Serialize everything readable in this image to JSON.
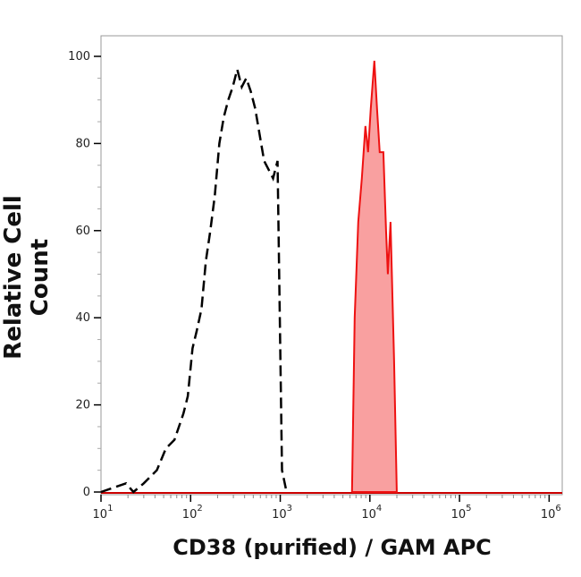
{
  "chart_data": {
    "type": "area",
    "xlabel": "CD38 (purified) / GAM APC",
    "ylabel": "Relative Cell Count",
    "xscale": "log",
    "xlim": [
      10,
      1400000
    ],
    "ylim": [
      0,
      100
    ],
    "yticks": [
      0,
      20,
      40,
      60,
      80,
      100
    ],
    "xticks": [
      {
        "base": "10",
        "exp": "1",
        "value": 10
      },
      {
        "base": "10",
        "exp": "2",
        "value": 100
      },
      {
        "base": "10",
        "exp": "3",
        "value": 1000
      },
      {
        "base": "10",
        "exp": "4",
        "value": 10000
      },
      {
        "base": "10",
        "exp": "5",
        "value": 100000
      },
      {
        "base": "10",
        "exp": "6",
        "value": 1000000
      }
    ],
    "grid": false,
    "series": [
      {
        "style": "dashed-black-line",
        "color": "#000000",
        "x": [
          10,
          19,
          23,
          30,
          42,
          53,
          66,
          83,
          93,
          105,
          117,
          132,
          148,
          166,
          186,
          209,
          234,
          263,
          295,
          331,
          372,
          417,
          468,
          525,
          589,
          661,
          741,
          832,
          933,
          1047,
          1175
        ],
        "y": [
          0,
          2,
          0,
          2,
          5,
          10,
          12,
          18,
          22,
          33,
          37,
          42,
          53,
          60,
          68,
          80,
          86,
          90,
          93,
          97,
          93,
          95,
          92,
          88,
          82,
          76,
          74,
          72,
          76,
          5,
          0
        ]
      },
      {
        "style": "red-filled",
        "color": "#ee1111",
        "fill": "#f9a0a0",
        "x": [
          6310,
          6760,
          7410,
          8130,
          8910,
          9550,
          10230,
          11220,
          12020,
          12880,
          14130,
          15140,
          15850,
          16980,
          18620,
          19950
        ],
        "y": [
          0,
          40,
          62,
          72,
          84,
          78,
          88,
          99,
          88,
          78,
          78,
          60,
          50,
          62,
          30,
          0
        ]
      }
    ]
  }
}
